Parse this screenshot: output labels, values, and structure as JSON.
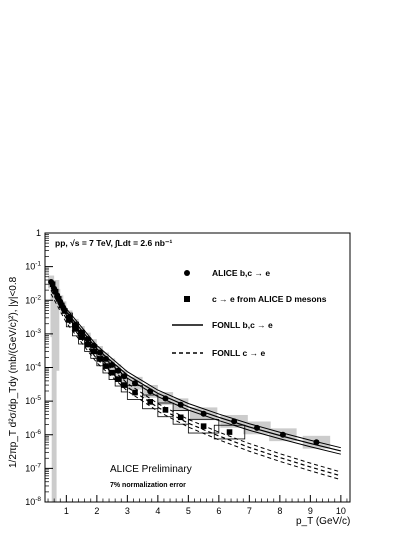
{
  "chart_data": {
    "type": "scatter",
    "title": "pp, √s = 7 TeV, ∫Ldt = 2.6 nb⁻¹",
    "xlabel": "p_T (GeV/c)",
    "ylabel": "1/2πp_T d²σ/dp_Tdy (mb/(GeV/c)²), |y|<0.8",
    "xlim": [
      0.3,
      10.3
    ],
    "ylim": [
      1e-08,
      1
    ],
    "yscale": "log",
    "x_ticks": [
      "1",
      "2",
      "3",
      "4",
      "5",
      "6",
      "7",
      "8",
      "9",
      "10"
    ],
    "y_ticks": [
      "10^-8",
      "10^-7",
      "10^-6",
      "10^-5",
      "10^-4",
      "10^-3",
      "10^-2",
      "10^-1",
      "1"
    ],
    "legend_position": "top-right",
    "annotations": [
      "ALICE Preliminary",
      "7% normalization error"
    ],
    "series": [
      {
        "name": "ALICE b,c → e",
        "marker": "circle",
        "x": [
          0.5,
          0.6,
          0.7,
          0.8,
          0.9,
          1.1,
          1.3,
          1.5,
          1.7,
          1.9,
          2.1,
          2.3,
          2.5,
          2.7,
          2.9,
          3.25,
          3.75,
          4.25,
          4.75,
          5.5,
          6.5,
          7.25,
          8.1,
          9.2
        ],
        "y": [
          0.035,
          0.022,
          0.014,
          0.009,
          0.006,
          0.0032,
          0.0018,
          0.0011,
          0.0007,
          0.00045,
          0.00028,
          0.00018,
          0.00012,
          8e-05,
          5.5e-05,
          3.4e-05,
          1.95e-05,
          1.2e-05,
          7.8e-06,
          4.2e-06,
          2.5e-06,
          1.6e-06,
          1e-06,
          6e-07
        ]
      },
      {
        "name": "c → e from ALICE D mesons",
        "marker": "square",
        "x": [
          0.55,
          0.65,
          0.75,
          0.85,
          0.95,
          1.1,
          1.3,
          1.5,
          1.7,
          1.9,
          2.1,
          2.3,
          2.5,
          2.7,
          2.9,
          3.25,
          3.75,
          4.25,
          4.75,
          5.5,
          6.35
        ],
        "y": [
          0.03,
          0.018,
          0.011,
          0.007,
          0.0048,
          0.0026,
          0.0014,
          0.0008,
          0.00048,
          0.0003,
          0.00018,
          0.00011,
          7e-05,
          4.5e-05,
          3e-05,
          1.8e-05,
          9.5e-06,
          5.5e-06,
          3.3e-06,
          1.8e-06,
          1.2e-06
        ]
      },
      {
        "name": "FONLL b,c → e",
        "style": "solid-band",
        "x": [
          0.5,
          1,
          2,
          3,
          4,
          5,
          6,
          7,
          8,
          9,
          10
        ],
        "y": [
          0.03,
          0.0045,
          0.00036,
          6e-05,
          1.7e-05,
          6.8e-06,
          3.3e-06,
          1.7e-06,
          9.5e-07,
          5.5e-07,
          3.3e-07
        ]
      },
      {
        "name": "FONLL c → e",
        "style": "dashed-band",
        "x": [
          0.5,
          1,
          2,
          3,
          4,
          5,
          6,
          7,
          8,
          9,
          10
        ],
        "y": [
          0.02,
          0.0028,
          0.00018,
          2.6e-05,
          6.5e-06,
          2.2e-06,
          9.2e-07,
          4.2e-07,
          2.1e-07,
          1.1e-07,
          6e-08
        ]
      }
    ]
  }
}
